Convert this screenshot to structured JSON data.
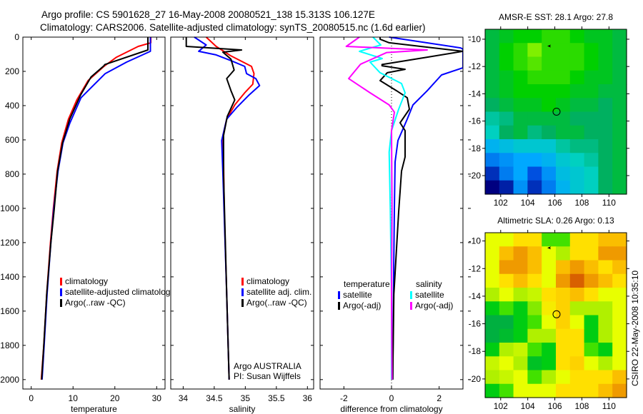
{
  "header": {
    "line1": "Argo profile: CS 5901628_27 16-May-2008 20080521_138 15.313S 106.127E",
    "line2": "Climatology: CARS2006. Satellite-adjusted climatology: synTS_20080515.nc (1.6d earlier)"
  },
  "side_text": "CSIRO 22-May-2008 10:35:10",
  "colors": {
    "red": "#ff0000",
    "blue": "#0000ff",
    "black": "#000000",
    "cyan": "#00ffff",
    "magenta": "#ff00ff"
  },
  "chart_data": [
    {
      "type": "line",
      "id": "temperature",
      "xlabel": "temperature",
      "ylabel": "",
      "xlim": [
        -2,
        32
      ],
      "ylim": [
        0,
        2055
      ],
      "y_reversed": true,
      "xticks": [
        "0",
        "10",
        "20",
        "30"
      ],
      "yticks": [
        "0",
        "200",
        "400",
        "600",
        "800",
        "1000",
        "1200",
        "1400",
        "1600",
        "1800",
        "2000"
      ],
      "legend": [
        "climatology",
        "satellite-adjusted climatology",
        "Argo(..raw -QC)"
      ],
      "series": [
        {
          "name": "climatology",
          "color": "#ff0000",
          "points": [
            [
              0,
              28.6
            ],
            [
              33,
              28.6
            ],
            [
              54,
              25.6
            ],
            [
              117,
              20.4
            ],
            [
              171,
              17.4
            ],
            [
              254,
              13.6
            ],
            [
              367,
              10.9
            ],
            [
              479,
              8.9
            ],
            [
              617,
              7.3
            ],
            [
              783,
              6.2
            ],
            [
              1000,
              5.3
            ],
            [
              1200,
              4.6
            ],
            [
              1500,
              3.7
            ],
            [
              1800,
              3.0
            ],
            [
              2000,
              2.4
            ]
          ]
        },
        {
          "name": "satellite-adjusted climatology",
          "color": "#0000ff",
          "points": [
            [
              0,
              28.5
            ],
            [
              83,
              28.5
            ],
            [
              146,
              22.8
            ],
            [
              213,
              17.7
            ],
            [
              354,
              11.9
            ],
            [
              504,
              9.2
            ],
            [
              617,
              7.6
            ],
            [
              783,
              6.4
            ],
            [
              1000,
              5.4
            ],
            [
              1200,
              4.7
            ],
            [
              1500,
              3.8
            ],
            [
              1800,
              3.1
            ],
            [
              2000,
              2.6
            ]
          ]
        },
        {
          "name": "Argo(..raw -QC)",
          "color": "#000000",
          "points": [
            [
              0,
              27.9
            ],
            [
              75,
              27.9
            ],
            [
              160,
              17.6
            ],
            [
              167,
              17.4
            ],
            [
              233,
              14.3
            ],
            [
              338,
              11.8
            ],
            [
              479,
              9.2
            ],
            [
              617,
              7.5
            ],
            [
              783,
              6.3
            ],
            [
              1004,
              5.5
            ],
            [
              1200,
              4.7
            ],
            [
              1500,
              3.7
            ],
            [
              1800,
              3.0
            ],
            [
              2000,
              2.5
            ]
          ]
        }
      ]
    },
    {
      "type": "line",
      "id": "salinity",
      "xlabel": "salinity",
      "xlim": [
        33.8,
        36.1
      ],
      "ylim": [
        0,
        2055
      ],
      "y_reversed": true,
      "xticks": [
        "34",
        "34.5",
        "35",
        "35.5",
        "36"
      ],
      "legend": [
        "climatology",
        "satellite adj. clim.",
        "Argo(..raw -QC)"
      ],
      "annotations": [
        "Argo AUSTRALIA",
        "PI: Susan Wijffels"
      ],
      "series": [
        {
          "name": "climatology",
          "color": "#ff0000",
          "points": [
            [
              0,
              34.37
            ],
            [
              54,
              34.53
            ],
            [
              108,
              34.76
            ],
            [
              171,
              35.1
            ],
            [
              213,
              35.14
            ],
            [
              275,
              35.12
            ],
            [
              325,
              34.99
            ],
            [
              396,
              34.83
            ],
            [
              479,
              34.7
            ],
            [
              575,
              34.64
            ],
            [
              700,
              34.65
            ],
            [
              1000,
              34.66
            ],
            [
              1500,
              34.7
            ],
            [
              2000,
              34.74
            ]
          ]
        },
        {
          "name": "satellite adj. clim.",
          "color": "#0000ff",
          "points": [
            [
              0,
              34.18
            ],
            [
              46,
              34.37
            ],
            [
              83,
              34.25
            ],
            [
              104,
              34.53
            ],
            [
              137,
              34.77
            ],
            [
              171,
              34.99
            ],
            [
              213,
              35.02
            ],
            [
              242,
              35.17
            ],
            [
              283,
              35.23
            ],
            [
              338,
              35.06
            ],
            [
              408,
              34.87
            ],
            [
              479,
              34.7
            ],
            [
              604,
              34.62
            ],
            [
              800,
              34.64
            ],
            [
              1500,
              34.7
            ],
            [
              2000,
              34.74
            ]
          ]
        },
        {
          "name": "Argo(..raw -QC)",
          "color": "#000000",
          "points": [
            [
              0,
              34.05
            ],
            [
              54,
              34.05
            ],
            [
              75,
              34.94
            ],
            [
              88,
              34.64
            ],
            [
              129,
              34.77
            ],
            [
              192,
              34.82
            ],
            [
              242,
              34.7
            ],
            [
              313,
              34.77
            ],
            [
              367,
              34.83
            ],
            [
              463,
              34.71
            ],
            [
              575,
              34.65
            ],
            [
              800,
              34.65
            ],
            [
              1500,
              34.7
            ],
            [
              2000,
              34.74
            ]
          ]
        }
      ]
    },
    {
      "type": "line",
      "id": "difference",
      "xlabel": "difference from climatology",
      "xlim": [
        -3,
        3
      ],
      "ylim": [
        0,
        2055
      ],
      "y_reversed": true,
      "xticks": [
        "-2",
        "0",
        "2"
      ],
      "legend_headers": [
        "temperature",
        "salinity"
      ],
      "legend": [
        "satellite",
        "Argo(-adj)",
        "satellite",
        "Argo(-adj)"
      ],
      "series": [
        {
          "name": "temperature satellite",
          "color": "#0000ff",
          "points": [
            [
              0,
              -0.1
            ],
            [
              63,
              2.9
            ],
            [
              70,
              3.0
            ],
            [
              179,
              3.0
            ],
            [
              221,
              2.1
            ],
            [
              313,
              1.5
            ],
            [
              396,
              0.9
            ],
            [
              479,
              0.66
            ],
            [
              604,
              0.27
            ],
            [
              729,
              0.15
            ],
            [
              1000,
              0.12
            ],
            [
              1500,
              0.08
            ],
            [
              2000,
              0.05
            ]
          ]
        },
        {
          "name": "temperature Argo(-adj)",
          "color": "#000000",
          "points": [
            [
              0,
              -0.48
            ],
            [
              12,
              -0.48
            ],
            [
              33,
              -0.1
            ],
            [
              83,
              3.0
            ],
            [
              117,
              1.5
            ],
            [
              160,
              -0.4
            ],
            [
              167,
              -0.4
            ],
            [
              188,
              0.57
            ],
            [
              208,
              -0.18
            ],
            [
              254,
              -0.48
            ],
            [
              313,
              0.21
            ],
            [
              354,
              0.66
            ],
            [
              421,
              0.75
            ],
            [
              500,
              0.36
            ],
            [
              546,
              0.57
            ],
            [
              700,
              0.57
            ],
            [
              783,
              0.42
            ],
            [
              1021,
              0.3
            ],
            [
              1500,
              0.1
            ],
            [
              2000,
              0.05
            ]
          ]
        },
        {
          "name": "salinity satellite",
          "color": "#00ffff",
          "points": [
            [
              0,
              -0.78
            ],
            [
              46,
              -0.45
            ],
            [
              83,
              -1.35
            ],
            [
              125,
              -0.39
            ],
            [
              146,
              -0.9
            ],
            [
              208,
              -0.48
            ],
            [
              271,
              0.42
            ],
            [
              325,
              0.57
            ],
            [
              421,
              0.3
            ],
            [
              546,
              0.0
            ],
            [
              671,
              -0.1
            ],
            [
              1000,
              -0.05
            ],
            [
              1500,
              0.0
            ],
            [
              2000,
              0.0
            ]
          ]
        },
        {
          "name": "salinity Argo(-adj)",
          "color": "#ff00ff",
          "points": [
            [
              0,
              -1.35
            ],
            [
              54,
              -1.9
            ],
            [
              75,
              1.5
            ],
            [
              90,
              -0.2
            ],
            [
              158,
              -1.3
            ],
            [
              242,
              -1.8
            ],
            [
              325,
              -0.9
            ],
            [
              396,
              -0.1
            ],
            [
              438,
              0.12
            ],
            [
              546,
              0.0
            ],
            [
              1000,
              0.02
            ],
            [
              1500,
              0.0
            ],
            [
              2000,
              0.02
            ]
          ]
        }
      ]
    },
    {
      "type": "heatmap",
      "id": "sst_map",
      "title": "AMSR-E SST: 28.1 Argo: 27.8",
      "xlim": [
        100.85,
        111.3
      ],
      "ylim": [
        -21.36,
        -9.27
      ],
      "xticks": [
        "102",
        "104",
        "106",
        "108",
        "110"
      ],
      "yticks": [
        "-10",
        "-12",
        "-14",
        "-16",
        "-18",
        "-20"
      ],
      "argo_position": [
        106.127,
        -15.313
      ],
      "trajectory_marker": [
        105.6,
        -10.5
      ],
      "values": [
        [
          28.0,
          28.1,
          28.2,
          28.2,
          28.3,
          28.3,
          28.2,
          28.1,
          28.1,
          28.0
        ],
        [
          28.0,
          28.2,
          28.3,
          28.5,
          28.3,
          28.3,
          28.3,
          28.2,
          28.1,
          28.0
        ],
        [
          28.0,
          28.2,
          28.3,
          28.4,
          28.3,
          28.3,
          28.3,
          28.2,
          28.1,
          28.0
        ],
        [
          28.0,
          28.1,
          28.2,
          28.3,
          28.3,
          28.3,
          28.2,
          28.1,
          28.1,
          28.0
        ],
        [
          28.0,
          28.1,
          28.2,
          28.2,
          28.2,
          28.2,
          28.1,
          28.1,
          28.0,
          28.0
        ],
        [
          27.9,
          28.0,
          28.1,
          28.1,
          28.2,
          28.1,
          28.0,
          28.0,
          27.9,
          28.0
        ],
        [
          27.7,
          27.8,
          28.0,
          28.0,
          28.0,
          28.0,
          27.9,
          27.9,
          27.9,
          28.0
        ],
        [
          27.6,
          27.9,
          28.0,
          27.8,
          27.9,
          28.0,
          28.0,
          27.9,
          27.9,
          28.0
        ],
        [
          27.3,
          27.4,
          27.5,
          27.5,
          27.5,
          27.7,
          27.8,
          27.8,
          27.9,
          28.0
        ],
        [
          27.0,
          27.1,
          27.2,
          27.2,
          27.3,
          27.5,
          27.6,
          27.7,
          27.9,
          28.0
        ],
        [
          26.6,
          27.0,
          27.2,
          26.8,
          27.1,
          27.4,
          27.5,
          27.6,
          27.9,
          28.0
        ],
        [
          26.3,
          26.5,
          27.1,
          26.6,
          27.0,
          27.3,
          27.5,
          27.6,
          27.9,
          28.0
        ]
      ]
    },
    {
      "type": "heatmap",
      "id": "sla_map",
      "title": "Altimetric SLA: 0.26 Argo: 0.13",
      "xlim": [
        100.85,
        111.3
      ],
      "ylim": [
        -21.35,
        -9.4
      ],
      "xticks": [
        "102",
        "104",
        "106",
        "108",
        "110"
      ],
      "yticks": [
        "-10",
        "-12",
        "-14",
        "-16",
        "-18",
        "-20"
      ],
      "argo_position": [
        106.127,
        -15.313
      ],
      "trajectory_marker": [
        105.6,
        -10.5
      ],
      "values": [
        [
          0.15,
          0.15,
          0.2,
          0.2,
          0.05,
          0.05,
          0.2,
          0.2,
          0.25,
          0.25
        ],
        [
          0.15,
          0.25,
          0.3,
          0.25,
          0.15,
          0.1,
          0.2,
          0.2,
          0.3,
          0.3
        ],
        [
          0.15,
          0.3,
          0.3,
          0.25,
          0.15,
          0.25,
          0.3,
          0.25,
          0.2,
          0.25
        ],
        [
          0.15,
          0.2,
          0.25,
          0.2,
          0.15,
          0.3,
          0.38,
          0.3,
          0.25,
          0.2
        ],
        [
          0.1,
          0.15,
          0.1,
          0.12,
          0.2,
          0.22,
          0.25,
          0.2,
          0.15,
          0.15
        ],
        [
          0.0,
          0.05,
          0.0,
          0.08,
          0.18,
          0.22,
          0.1,
          0.1,
          0.1,
          0.15
        ],
        [
          -0.05,
          -0.05,
          0.0,
          0.05,
          0.15,
          0.22,
          0.15,
          0.0,
          0.1,
          0.15
        ],
        [
          -0.05,
          -0.03,
          0.0,
          0.1,
          0.1,
          0.2,
          0.2,
          0.0,
          0.1,
          0.15
        ],
        [
          0.0,
          0.1,
          0.12,
          0.05,
          0.0,
          0.2,
          0.2,
          0.05,
          0.0,
          0.15
        ],
        [
          0.12,
          0.15,
          0.1,
          -0.02,
          0.0,
          0.2,
          0.22,
          0.15,
          0.1,
          0.15
        ],
        [
          0.1,
          0.12,
          0.15,
          0.05,
          0.1,
          0.15,
          0.2,
          0.2,
          0.2,
          0.25
        ],
        [
          0.0,
          0.05,
          0.15,
          0.15,
          0.15,
          0.2,
          0.2,
          0.2,
          0.25,
          0.3
        ]
      ]
    }
  ]
}
